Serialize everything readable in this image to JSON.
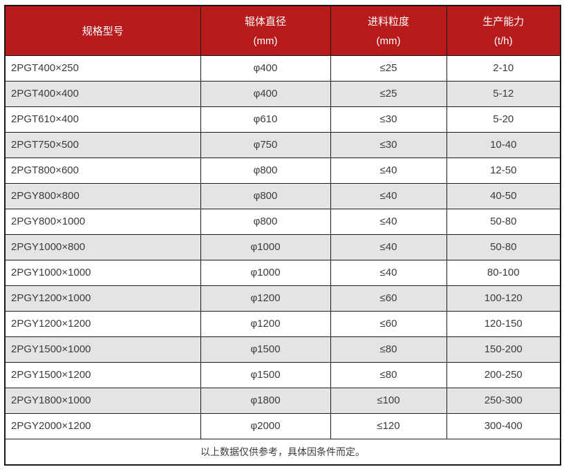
{
  "table": {
    "columns": [
      {
        "title": "规格型号",
        "unit": ""
      },
      {
        "title": "辊体直径",
        "unit": "(mm)"
      },
      {
        "title": "进料粒度",
        "unit": "(mm)"
      },
      {
        "title": "生产能力",
        "unit": "(t/h)"
      }
    ],
    "rows": [
      [
        "2PGT400×250",
        "φ400",
        "≤25",
        "2-10"
      ],
      [
        "2PGT400×400",
        "φ400",
        "≤25",
        "5-12"
      ],
      [
        "2PGT610×400",
        "φ610",
        "≤30",
        "5-20"
      ],
      [
        "2PGT750×500",
        "φ750",
        "≤30",
        "10-40"
      ],
      [
        "2PGT800×600",
        "φ800",
        "≤40",
        "12-50"
      ],
      [
        "2PGY800×800",
        "φ800",
        "≤40",
        "40-50"
      ],
      [
        "2PGY800×1000",
        "φ800",
        "≤40",
        "50-80"
      ],
      [
        "2PGY1000×800",
        "φ1000",
        "≤40",
        "50-80"
      ],
      [
        "2PGY1000×1000",
        "φ1000",
        "≤40",
        "80-100"
      ],
      [
        "2PGY1200×1000",
        "φ1200",
        "≤60",
        "100-120"
      ],
      [
        "2PGY1200×1200",
        "φ1200",
        "≤60",
        "120-150"
      ],
      [
        "2PGY1500×1000",
        "φ1500",
        "≤80",
        "150-200"
      ],
      [
        "2PGY1500×1200",
        "φ1500",
        "≤80",
        "200-250"
      ],
      [
        "2PGY1800×1000",
        "φ1800",
        "≤100",
        "250-300"
      ],
      [
        "2PGY2000×1200",
        "φ2000",
        "≤120",
        "300-400"
      ]
    ],
    "footer_note": "以上数据仅供参考，具体因条件而定。"
  },
  "colors": {
    "header_bg": "#b71b1b",
    "header_text": "#ffffff",
    "row_alt_bg": "#e4e4e4",
    "body_text": "#3b3b3b",
    "border": "#191919"
  }
}
